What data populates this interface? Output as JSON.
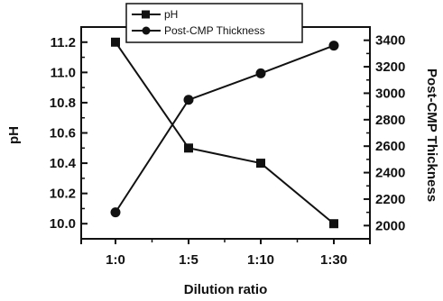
{
  "chart_data": {
    "type": "line",
    "categories": [
      "1:0",
      "1:5",
      "1:10",
      "1:30"
    ],
    "xlabel": "Dilution ratio",
    "ylabel": "pH",
    "y2label": "Post-CMP Thickness",
    "ylim": [
      9.9,
      11.3
    ],
    "y2lim": [
      1900,
      3500
    ],
    "yticks": [
      "10.0",
      "10.2",
      "10.4",
      "10.6",
      "10.8",
      "11.0",
      "11.2"
    ],
    "y2ticks": [
      "2000",
      "2200",
      "2400",
      "2600",
      "2800",
      "3000",
      "3200",
      "3400"
    ],
    "legend_position": "top-center",
    "grid": false,
    "series": [
      {
        "name": "pH",
        "axis": "left",
        "marker": "square",
        "values": [
          11.2,
          10.5,
          10.4,
          10.0
        ]
      },
      {
        "name": "Post-CMP Thickness",
        "axis": "right",
        "marker": "circle",
        "values": [
          2100,
          2950,
          3150,
          3360
        ]
      }
    ],
    "colors": {
      "line": "#111111",
      "background": "#ffffff"
    }
  }
}
